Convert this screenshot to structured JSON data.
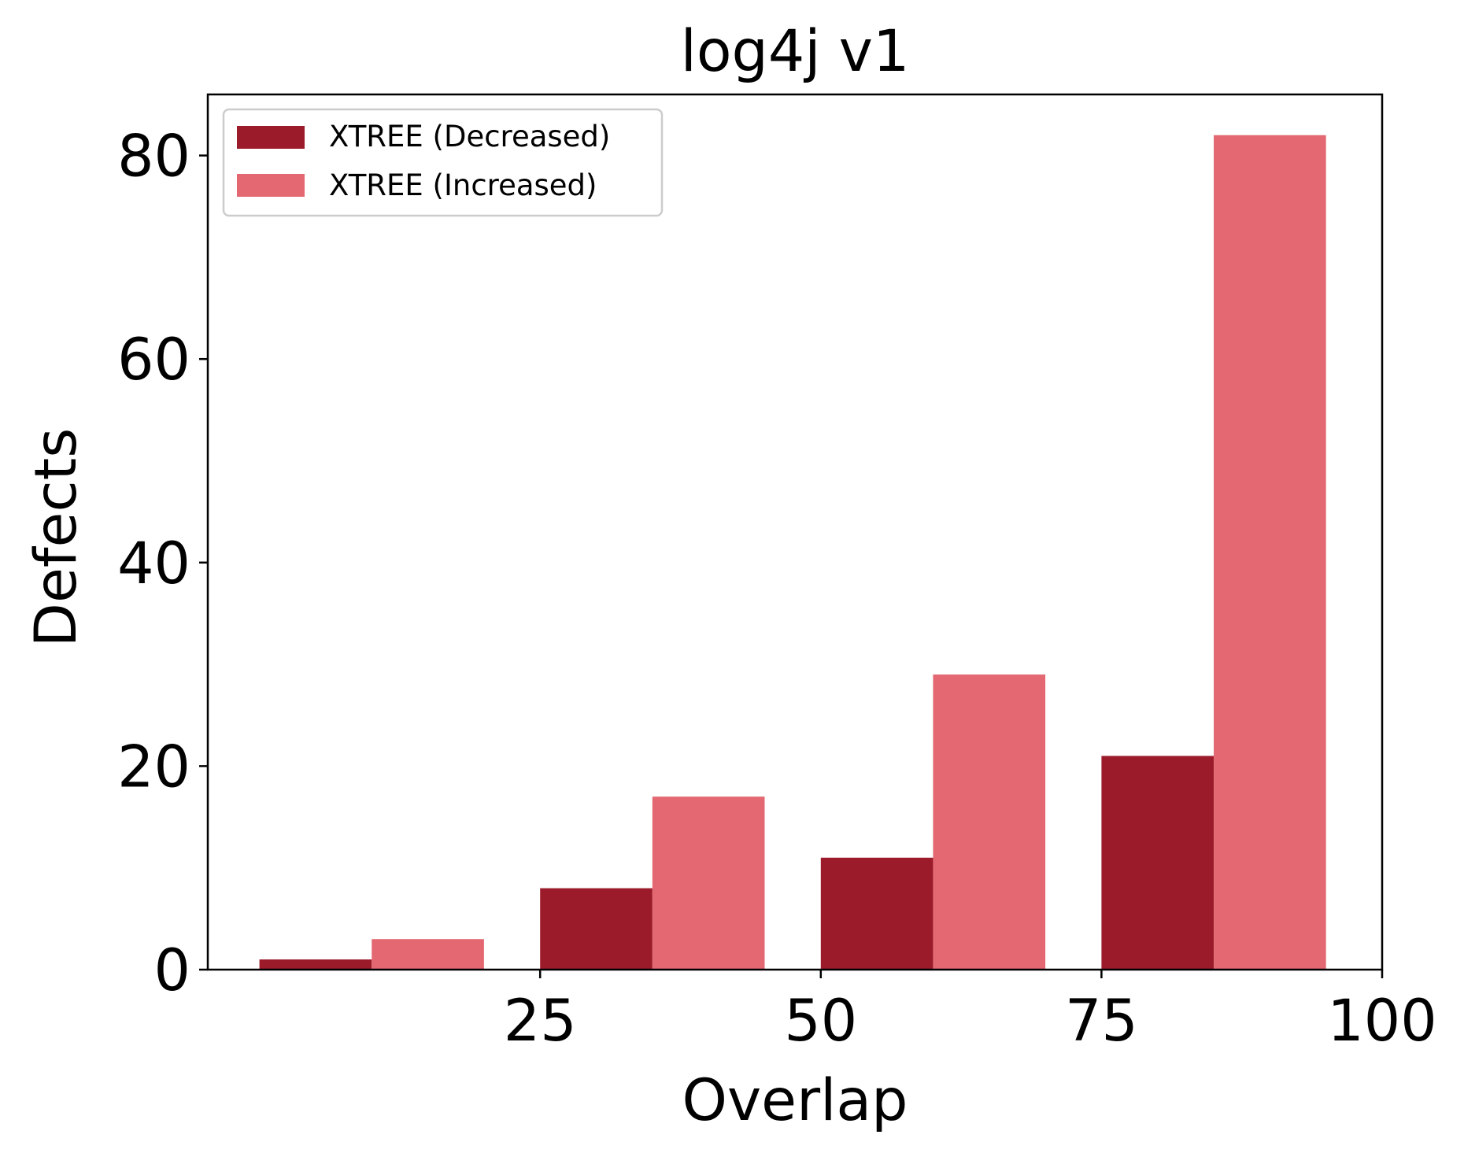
{
  "chart_data": {
    "type": "bar",
    "title": "log4j v1",
    "xlabel": "Overlap",
    "ylabel": "Defects",
    "categories": [
      "0",
      "25",
      "50",
      "75"
    ],
    "x_positions": [
      0,
      25,
      50,
      75
    ],
    "xlim": [
      -4.6,
      100
    ],
    "ylim": [
      0,
      86
    ],
    "xticks": [
      25,
      50,
      75,
      100
    ],
    "xtick_labels": [
      "25",
      "50",
      "75",
      "100"
    ],
    "yticks": [
      0,
      20,
      40,
      60,
      80
    ],
    "ytick_labels": [
      "0",
      "20",
      "40",
      "60",
      "80"
    ],
    "grid": false,
    "legend_position": "top-left",
    "series": [
      {
        "name": "XTREE (Decreased)",
        "color": "#9b1b2a",
        "values": [
          1,
          8,
          11,
          21
        ]
      },
      {
        "name": "XTREE (Increased)",
        "color": "#e36872",
        "values": [
          3,
          17,
          29,
          82
        ]
      }
    ]
  }
}
